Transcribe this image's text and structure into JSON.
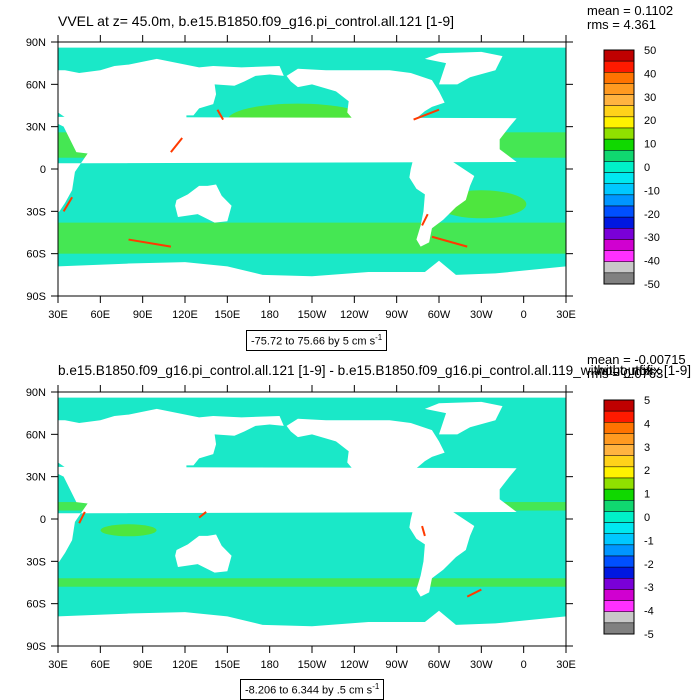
{
  "chart_data": [
    {
      "type": "heatmap",
      "title": "VVEL at z=  45.0m, b.e15.B1850.f09_g16.pi_control.all.121 [1-9]",
      "stats": {
        "mean": "mean = 0.1102",
        "rms": "rms = 4.361"
      },
      "range_label": {
        "text": "-75.72 to 75.66 by 5 cm s",
        "unit_exp": "-1"
      },
      "x_ticks": [
        "30E",
        "60E",
        "90E",
        "120E",
        "150E",
        "180",
        "150W",
        "120W",
        "90W",
        "60W",
        "30W",
        "0",
        "30E"
      ],
      "y_ticks": [
        "90N",
        "60N",
        "30N",
        "0",
        "30S",
        "60S",
        "90S"
      ],
      "colorbar": {
        "labels": [
          "50",
          "40",
          "30",
          "20",
          "10",
          "0",
          "-10",
          "-20",
          "-30",
          "-40",
          "-50"
        ],
        "colors": [
          "#bf0000",
          "#ff1a00",
          "#ff7300",
          "#ff9a20",
          "#ffb340",
          "#ffd21a",
          "#fff200",
          "#90e000",
          "#10d800",
          "#10d870",
          "#00f0c8",
          "#00e8f0",
          "#00c8ff",
          "#0096ff",
          "#0050ff",
          "#0018e0",
          "#7a00d8",
          "#d000d0",
          "#ff30ff",
          "#c8c8c8",
          "#808080"
        ]
      },
      "ocean_color": "#1ae8c8",
      "band_color": "#4ee63e"
    },
    {
      "type": "heatmap",
      "title": "b.e15.B1850.f09_g16.pi_control.all.121 [1-9] - b.e15.B1850.f09_g16.pi_control.all.119_without_nofix [1-9]",
      "title_overlap": "withoutfix",
      "stats": {
        "mean": "mean = -0.00715",
        "rms": "rms = 0.0763"
      },
      "range_label": {
        "text": "-8.206 to 6.344 by .5 cm s",
        "unit_exp": "-1"
      },
      "x_ticks": [
        "30E",
        "60E",
        "90E",
        "120E",
        "150E",
        "180",
        "150W",
        "120W",
        "90W",
        "60W",
        "30W",
        "0",
        "30E"
      ],
      "y_ticks": [
        "90N",
        "60N",
        "30N",
        "0",
        "30S",
        "60S",
        "90S"
      ],
      "colorbar": {
        "labels": [
          "5",
          "4",
          "3",
          "2",
          "1",
          "0",
          "-1",
          "-2",
          "-3",
          "-4",
          "-5"
        ],
        "colors": [
          "#bf0000",
          "#ff1a00",
          "#ff7300",
          "#ff9a20",
          "#ffb340",
          "#ffd21a",
          "#fff200",
          "#90e000",
          "#10d800",
          "#10d870",
          "#00f0c8",
          "#00e8f0",
          "#00c8ff",
          "#0096ff",
          "#0050ff",
          "#0018e0",
          "#7a00d8",
          "#d000d0",
          "#ff30ff",
          "#c8c8c8",
          "#808080"
        ]
      },
      "ocean_color": "#1ae8c8",
      "band_color": "#4ee63e"
    }
  ]
}
